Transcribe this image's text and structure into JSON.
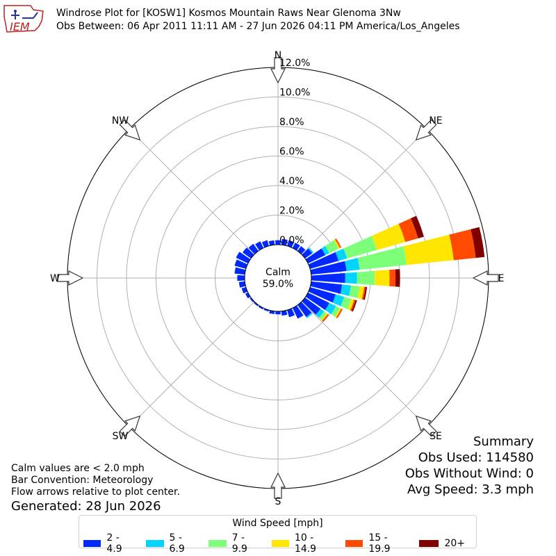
{
  "header": {
    "logo_text": "IEM",
    "title_line1": "Windrose Plot for [KOSW1] Kosmos Mountain Raws Near Glenoma 3Nw",
    "title_line2": "Obs Between: 06 Apr 2011 11:11 AM - 27 Jun 2026 04:11 PM America/Los_Angeles"
  },
  "chart_data": {
    "type": "windrose",
    "radial_ticks": [
      "0.0%",
      "2.0%",
      "4.0%",
      "6.0%",
      "8.0%",
      "10.0%",
      "12.0%"
    ],
    "rmax_pct": 12.0,
    "directions": [
      "N",
      "NE",
      "E",
      "SE",
      "S",
      "SW",
      "W",
      "NW"
    ],
    "calm_label": "Calm",
    "calm_value": "59.0%",
    "legend_title": "Wind Speed [mph]",
    "speed_bins": [
      {
        "label": "2 - 4.9",
        "color": "#0028ff"
      },
      {
        "label": "5 - 6.9",
        "color": "#00d5ff"
      },
      {
        "label": "7 - 9.9",
        "color": "#7dff7a"
      },
      {
        "label": "10 - 14.9",
        "color": "#ffe600"
      },
      {
        "label": "15 - 19.9",
        "color": "#ff4a00"
      },
      {
        "label": "20+",
        "color": "#800000"
      }
    ],
    "sectors": [
      {
        "dir_deg": 0,
        "values": [
          0.3,
          0,
          0,
          0,
          0,
          0
        ]
      },
      {
        "dir_deg": 10,
        "values": [
          0.4,
          0,
          0,
          0,
          0,
          0
        ]
      },
      {
        "dir_deg": 20,
        "values": [
          0.4,
          0,
          0,
          0,
          0,
          0
        ]
      },
      {
        "dir_deg": 30,
        "values": [
          0.4,
          0,
          0,
          0,
          0,
          0
        ]
      },
      {
        "dir_deg": 40,
        "values": [
          0.4,
          0,
          0,
          0,
          0,
          0
        ]
      },
      {
        "dir_deg": 50,
        "values": [
          0.6,
          0.1,
          0,
          0,
          0,
          0
        ]
      },
      {
        "dir_deg": 60,
        "values": [
          1.3,
          0.3,
          0.7,
          0.1,
          0.1,
          0
        ]
      },
      {
        "dir_deg": 70,
        "values": [
          2.0,
          0.6,
          2.1,
          2.0,
          0.9,
          0.4
        ]
      },
      {
        "dir_deg": 80,
        "values": [
          2.4,
          0.9,
          3.2,
          3.2,
          1.5,
          0.6
        ]
      },
      {
        "dir_deg": 90,
        "values": [
          2.3,
          0.8,
          1.2,
          1.0,
          0.4,
          0.3
        ]
      },
      {
        "dir_deg": 100,
        "values": [
          2.1,
          0.6,
          0.6,
          0.3,
          0.1,
          0.1
        ]
      },
      {
        "dir_deg": 110,
        "values": [
          1.8,
          0.6,
          0.5,
          0.2,
          0.1,
          0.1
        ]
      },
      {
        "dir_deg": 120,
        "values": [
          1.6,
          0.5,
          0.3,
          0.1,
          0.1,
          0
        ]
      },
      {
        "dir_deg": 130,
        "values": [
          1.3,
          0.3,
          0.2,
          0.1,
          0.1,
          0
        ]
      },
      {
        "dir_deg": 140,
        "values": [
          1.0,
          0.1,
          0,
          0,
          0,
          0
        ]
      },
      {
        "dir_deg": 150,
        "values": [
          0.8,
          0,
          0,
          0,
          0,
          0
        ]
      },
      {
        "dir_deg": 160,
        "values": [
          0.5,
          0,
          0,
          0,
          0,
          0
        ]
      },
      {
        "dir_deg": 170,
        "values": [
          0.3,
          0,
          0,
          0,
          0,
          0
        ]
      },
      {
        "dir_deg": 180,
        "values": [
          0.2,
          0,
          0,
          0,
          0,
          0
        ]
      },
      {
        "dir_deg": 190,
        "values": [
          0.2,
          0,
          0,
          0,
          0,
          0
        ]
      },
      {
        "dir_deg": 200,
        "values": [
          0.1,
          0,
          0,
          0,
          0,
          0
        ]
      },
      {
        "dir_deg": 210,
        "values": [
          0.1,
          0,
          0,
          0,
          0,
          0
        ]
      },
      {
        "dir_deg": 220,
        "values": [
          0.1,
          0,
          0,
          0,
          0,
          0
        ]
      },
      {
        "dir_deg": 230,
        "values": [
          0.1,
          0,
          0,
          0,
          0,
          0
        ]
      },
      {
        "dir_deg": 240,
        "values": [
          0.2,
          0,
          0,
          0,
          0,
          0
        ]
      },
      {
        "dir_deg": 250,
        "values": [
          0.3,
          0,
          0,
          0,
          0,
          0
        ]
      },
      {
        "dir_deg": 260,
        "values": [
          0.4,
          0,
          0,
          0,
          0,
          0
        ]
      },
      {
        "dir_deg": 270,
        "values": [
          0.5,
          0,
          0,
          0,
          0,
          0
        ]
      },
      {
        "dir_deg": 280,
        "values": [
          0.7,
          0,
          0,
          0,
          0,
          0
        ]
      },
      {
        "dir_deg": 290,
        "values": [
          0.8,
          0,
          0,
          0,
          0,
          0
        ]
      },
      {
        "dir_deg": 300,
        "values": [
          0.9,
          0,
          0,
          0,
          0,
          0
        ]
      },
      {
        "dir_deg": 310,
        "values": [
          0.7,
          0,
          0,
          0,
          0,
          0
        ]
      },
      {
        "dir_deg": 320,
        "values": [
          0.6,
          0,
          0,
          0,
          0,
          0
        ]
      },
      {
        "dir_deg": 330,
        "values": [
          0.5,
          0,
          0,
          0,
          0,
          0
        ]
      },
      {
        "dir_deg": 340,
        "values": [
          0.4,
          0,
          0,
          0,
          0,
          0
        ]
      },
      {
        "dir_deg": 350,
        "values": [
          0.3,
          0,
          0,
          0,
          0,
          0
        ]
      }
    ]
  },
  "summary": {
    "title": "Summary",
    "obs_used": "Obs Used: 114580",
    "obs_without_wind": "Obs Without Wind: 0",
    "avg_speed": "Avg Speed: 3.3 mph"
  },
  "notes": {
    "line1": "Calm values are < 2.0 mph",
    "line2": "Bar Convention: Meteorology",
    "line3": "Flow arrows relative to plot center."
  },
  "generated": "Generated: 28 Jun 2026"
}
